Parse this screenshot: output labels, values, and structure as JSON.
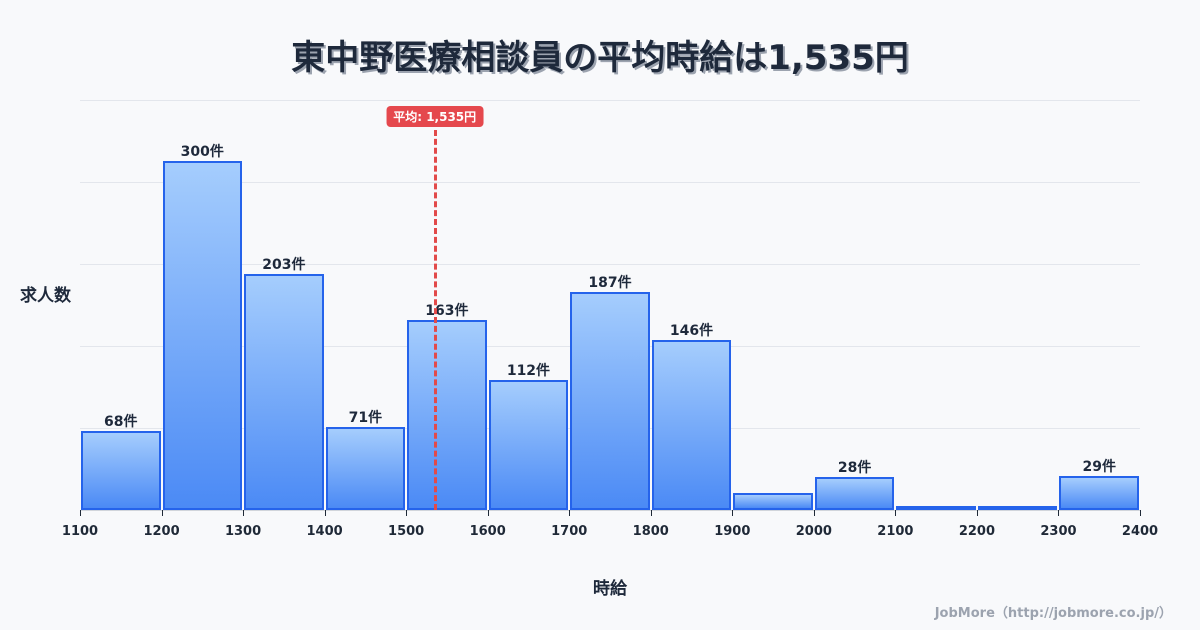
{
  "title": "東中野医療相談員の平均時給は1,535円",
  "average": {
    "value": 1535,
    "label": "平均: 1,535円",
    "color": "#e5484d"
  },
  "axes": {
    "ylabel": "求人数",
    "xlabel": "時給"
  },
  "credit": "JobMore（http://jobmore.co.jp/）",
  "colors": {
    "bar_border": "#2563eb",
    "bar_top": "#a5cdfd",
    "bar_bottom": "#4b8af5",
    "average_line": "#e24a4a"
  },
  "chart_data": {
    "type": "bar",
    "title": "東中野医療相談員の平均時給は1,535円",
    "xlabel": "時給",
    "ylabel": "求人数",
    "x_ticks": [
      1100,
      1200,
      1300,
      1400,
      1500,
      1600,
      1700,
      1800,
      1900,
      2000,
      2100,
      2200,
      2300,
      2400
    ],
    "bins": [
      {
        "start": 1100,
        "end": 1200,
        "value": 68,
        "label": "68件"
      },
      {
        "start": 1200,
        "end": 1300,
        "value": 300,
        "label": "300件"
      },
      {
        "start": 1300,
        "end": 1400,
        "value": 203,
        "label": "203件"
      },
      {
        "start": 1400,
        "end": 1500,
        "value": 71,
        "label": "71件"
      },
      {
        "start": 1500,
        "end": 1600,
        "value": 163,
        "label": "163件"
      },
      {
        "start": 1600,
        "end": 1700,
        "value": 112,
        "label": "112件"
      },
      {
        "start": 1700,
        "end": 1800,
        "value": 187,
        "label": "187件"
      },
      {
        "start": 1800,
        "end": 1900,
        "value": 146,
        "label": "146件"
      },
      {
        "start": 1900,
        "end": 2000,
        "value": 15,
        "label": ""
      },
      {
        "start": 2000,
        "end": 2100,
        "value": 28,
        "label": "28件"
      },
      {
        "start": 2100,
        "end": 2200,
        "value": 1,
        "label": ""
      },
      {
        "start": 2200,
        "end": 2300,
        "value": 1,
        "label": ""
      },
      {
        "start": 2300,
        "end": 2400,
        "value": 29,
        "label": "29件"
      }
    ],
    "ylim": [
      0,
      352
    ],
    "xlim": [
      1100,
      2400
    ],
    "grid": true,
    "annotations": [
      {
        "type": "vline",
        "x": 1535,
        "label": "平均: 1,535円"
      }
    ]
  }
}
